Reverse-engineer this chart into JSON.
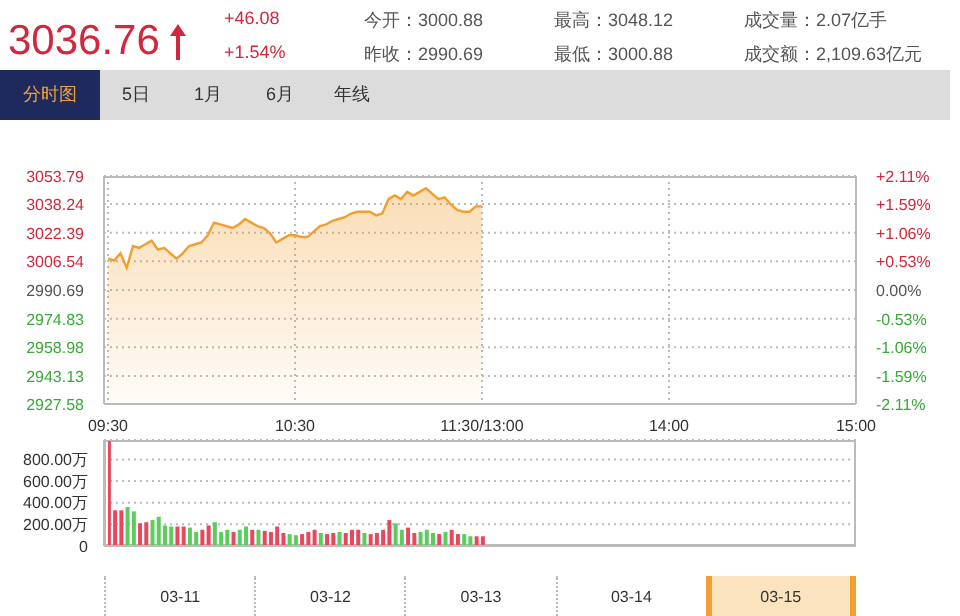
{
  "chart_data": [
    {
      "type": "other",
      "annotations": [
        "3036.76",
        "+46.08",
        "+1.54%",
        "今开：3000.88",
        "昨收：2990.69",
        "最高：3048.12",
        "最低：3000.88",
        "成交量：2.07亿手",
        "成交额：2,109.63亿元",
        "分时图",
        "5日",
        "1月",
        "6月",
        "年线"
      ]
    },
    {
      "type": "area",
      "categories": [
        "09:30",
        null,
        null,
        null,
        null,
        null,
        null,
        null,
        null,
        null,
        null,
        null,
        null,
        null,
        null,
        null,
        null,
        null,
        null,
        null,
        null,
        null,
        null,
        null,
        null,
        null,
        null,
        null,
        null,
        null,
        "10:30",
        null,
        null,
        null,
        null,
        null,
        null,
        null,
        null,
        null,
        null,
        null,
        null,
        null,
        null,
        null,
        null,
        null,
        null,
        null,
        null,
        null,
        null,
        null,
        null,
        null,
        null,
        null,
        null,
        null,
        "11:30/13:00",
        null,
        null,
        null,
        null,
        null,
        null,
        null,
        null,
        null,
        null,
        null,
        null,
        null,
        null,
        null,
        null,
        null,
        null,
        null,
        null,
        null,
        null,
        null,
        null,
        null,
        null,
        null,
        null,
        null,
        "14:00",
        null,
        null,
        null,
        null,
        null,
        null,
        null,
        null,
        null,
        null,
        null,
        null,
        null,
        null,
        null,
        null,
        null,
        null,
        null,
        null,
        null,
        null,
        null,
        null,
        null,
        null,
        null,
        null,
        null,
        "15:00"
      ],
      "series": [
        {
          "color": "#f0a030",
          "values": [
            3008,
            3007,
            3011,
            3003,
            3015,
            3014,
            3016,
            3018,
            3013,
            3014,
            3011,
            3008,
            3011,
            3015,
            3016,
            3017,
            3021,
            3028,
            3027,
            3026,
            3025,
            3027,
            3030,
            3028,
            3026,
            3025,
            3022,
            3017,
            3019,
            3021,
            3021,
            3020,
            3020,
            3023,
            3026,
            3027,
            3029,
            3030,
            3031,
            3033,
            3034,
            3034,
            3034,
            3032,
            3033,
            3041,
            3043,
            3041,
            3045,
            3043,
            3045,
            3047,
            3044,
            3041,
            3042,
            3038,
            3035,
            3034,
            3034,
            3037,
            3037,
            null,
            null,
            null,
            null,
            null,
            null,
            null,
            null,
            null,
            null,
            null,
            null,
            null,
            null,
            null,
            null,
            null,
            null,
            null,
            null,
            null,
            null,
            null,
            null,
            null,
            null,
            null,
            null,
            null,
            null,
            null,
            null,
            null,
            null,
            null,
            null,
            null,
            null,
            null,
            null,
            null,
            null,
            null,
            null,
            null,
            null,
            null,
            null,
            null,
            null,
            null,
            null,
            null,
            null,
            null,
            null,
            null,
            null,
            null,
            null
          ]
        }
      ],
      "ylim": [
        2927.58,
        3053.79
      ],
      "yticks": [
        2927.58,
        2943.13,
        2958.98,
        2974.83,
        2990.69,
        3006.54,
        3022.39,
        3038.24,
        3053.79
      ],
      "y2lim": [
        -2.11,
        2.11
      ],
      "y2ticks": [
        {
          "value": -2.11,
          "label": "-2.11%"
        },
        {
          "value": -1.59,
          "label": "-1.59%"
        },
        {
          "value": -1.06,
          "label": "-1.06%"
        },
        {
          "value": -0.53,
          "label": "-0.53%"
        },
        {
          "value": 0,
          "label": "0.00%"
        },
        {
          "value": 0.53,
          "label": "+0.53%"
        },
        {
          "value": 1.06,
          "label": "+1.06%"
        },
        {
          "value": 1.59,
          "label": "+1.59%"
        },
        {
          "value": 2.11,
          "label": "+2.11%"
        }
      ],
      "grid": true
    },
    {
      "type": "bar",
      "categories": [
        null,
        null,
        null,
        null,
        null,
        null,
        null,
        null,
        null,
        null,
        null,
        null,
        null,
        null,
        null,
        null,
        null,
        null,
        null,
        null,
        null,
        null,
        null,
        null,
        null,
        null,
        null,
        null,
        null,
        null,
        null,
        null,
        null,
        null,
        null,
        null,
        null,
        null,
        null,
        null,
        null,
        null,
        null,
        null,
        null,
        null,
        null,
        null,
        null,
        null,
        null,
        null,
        null,
        null,
        null,
        null,
        null,
        null,
        null,
        null,
        null,
        null,
        null,
        null,
        null,
        null,
        null,
        null,
        null,
        null,
        null,
        null,
        null,
        null,
        null,
        null,
        null,
        null,
        null,
        null,
        null,
        null,
        null,
        null,
        null,
        null,
        null,
        null,
        null,
        null,
        null,
        null,
        null,
        null,
        null,
        null,
        null,
        null,
        null,
        null,
        null,
        null,
        null,
        null,
        null,
        null,
        null,
        null,
        null,
        null,
        null,
        null,
        null,
        null,
        null,
        null,
        null,
        null,
        null,
        null,
        null
      ],
      "values": [
        970,
        330,
        330,
        360,
        320,
        210,
        220,
        240,
        270,
        190,
        180,
        180,
        180,
        170,
        130,
        150,
        190,
        220,
        130,
        150,
        130,
        150,
        180,
        150,
        150,
        140,
        130,
        180,
        120,
        110,
        100,
        110,
        130,
        150,
        120,
        110,
        120,
        130,
        120,
        150,
        150,
        120,
        110,
        120,
        150,
        240,
        210,
        150,
        170,
        120,
        130,
        150,
        120,
        110,
        130,
        150,
        110,
        110,
        90,
        90,
        90,
        null,
        null,
        null,
        null,
        null,
        null,
        null,
        null,
        null,
        null,
        null,
        null,
        null,
        null,
        null,
        null,
        null,
        null,
        null,
        null,
        null,
        null,
        null,
        null,
        null,
        null,
        null,
        null,
        null,
        null,
        null,
        null,
        null,
        null,
        null,
        null,
        null,
        null,
        null,
        null,
        null,
        null,
        null,
        null,
        null,
        null,
        null,
        null,
        null,
        null,
        null,
        null,
        null,
        null,
        null,
        null,
        null,
        null,
        null,
        null
      ],
      "colors": [
        "#e8485e",
        "#e8485e",
        "#e8485e",
        "#5ccc5c",
        "#5ccc5c",
        "#e8485e",
        "#e8485e",
        "#5ccc5c",
        "#5ccc5c",
        "#5ccc5c",
        "#5ccc5c",
        "#e8485e",
        "#e8485e",
        "#5ccc5c",
        "#5ccc5c",
        "#e8485e",
        "#e8485e",
        "#5ccc5c",
        "#5ccc5c",
        "#5ccc5c",
        "#e8485e",
        "#5ccc5c",
        "#5ccc5c",
        "#e8485e",
        "#5ccc5c",
        "#e8485e",
        "#e8485e",
        "#e8485e",
        "#e8485e",
        "#5ccc5c",
        "#5ccc5c",
        "#e8485e",
        "#e8485e",
        "#e8485e",
        "#5ccc5c",
        "#e8485e",
        "#e8485e",
        "#5ccc5c",
        "#e8485e",
        "#e8485e",
        "#e8485e",
        "#5ccc5c",
        "#e8485e",
        "#e8485e",
        "#e8485e",
        "#e8485e",
        "#5ccc5c",
        "#5ccc5c",
        "#e8485e",
        "#e8485e",
        "#5ccc5c",
        "#5ccc5c",
        "#5ccc5c",
        "#e8485e",
        "#5ccc5c",
        "#e8485e",
        "#e8485e",
        "#5ccc5c",
        "#5ccc5c",
        "#e8485e",
        "#e8485e",
        null,
        null,
        null,
        null,
        null,
        null,
        null,
        null,
        null,
        null,
        null,
        null,
        null,
        null,
        null,
        null,
        null,
        null,
        null,
        null,
        null,
        null,
        null,
        null,
        null,
        null,
        null,
        null,
        null,
        null,
        null,
        null,
        null,
        null,
        null,
        null,
        null,
        null,
        null,
        null,
        null,
        null,
        null,
        null,
        null,
        null,
        null,
        null,
        null,
        null,
        null,
        null,
        null,
        null,
        null,
        null,
        null,
        null,
        null,
        null
      ],
      "ylim": [
        0,
        980
      ],
      "yticks": [
        0,
        {
          "value": 200,
          "label": "200.00万"
        },
        {
          "value": 400,
          "label": "400.00万"
        },
        {
          "value": 600,
          "label": "600.00万"
        },
        {
          "value": 800,
          "label": "800.00万"
        }
      ],
      "grid": true,
      "tick_labels": "y",
      "annotations": [
        "03-11",
        "03-12",
        "03-13",
        "03-14",
        "03-15"
      ]
    }
  ]
}
